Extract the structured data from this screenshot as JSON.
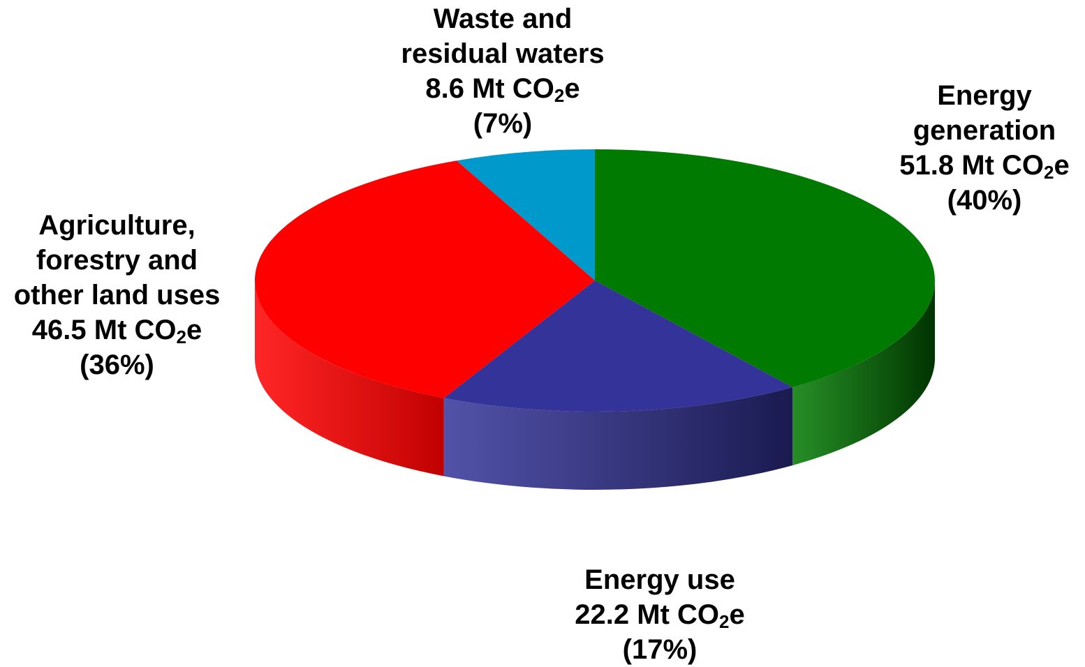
{
  "chart_data": {
    "type": "pie",
    "style": "3d",
    "unit": "Mt CO2e",
    "slices": [
      {
        "name": "Energy generation",
        "name_lines": [
          "Energy",
          "generation"
        ],
        "value": 51.8,
        "value_text": "51.8 Mt CO",
        "percent": 40,
        "percent_text": "(40%)",
        "color": "#007A00",
        "side_color": "#003300"
      },
      {
        "name": "Energy use",
        "name_lines": [
          "Energy use"
        ],
        "value": 22.2,
        "value_text": "22.2 Mt CO",
        "percent": 17,
        "percent_text": "(17%)",
        "color": "#333399",
        "side_color": "#1A1A50"
      },
      {
        "name": "Agriculture, forestry and other land uses",
        "name_lines": [
          "Agriculture,",
          "forestry and",
          "other land uses"
        ],
        "value": 46.5,
        "value_text": "46.5 Mt CO",
        "percent": 36,
        "percent_text": "(36%)",
        "color": "#FF0000",
        "side_color": "#C00000"
      },
      {
        "name": "Waste and residual waters",
        "name_lines": [
          "Waste and",
          "residual waters"
        ],
        "value": 8.6,
        "value_text": "8.6 Mt CO",
        "percent": 7,
        "percent_text": "(7%)",
        "color": "#0099CC",
        "side_color": "#006688"
      }
    ],
    "unit_subscript": "2",
    "unit_suffix": "e"
  }
}
